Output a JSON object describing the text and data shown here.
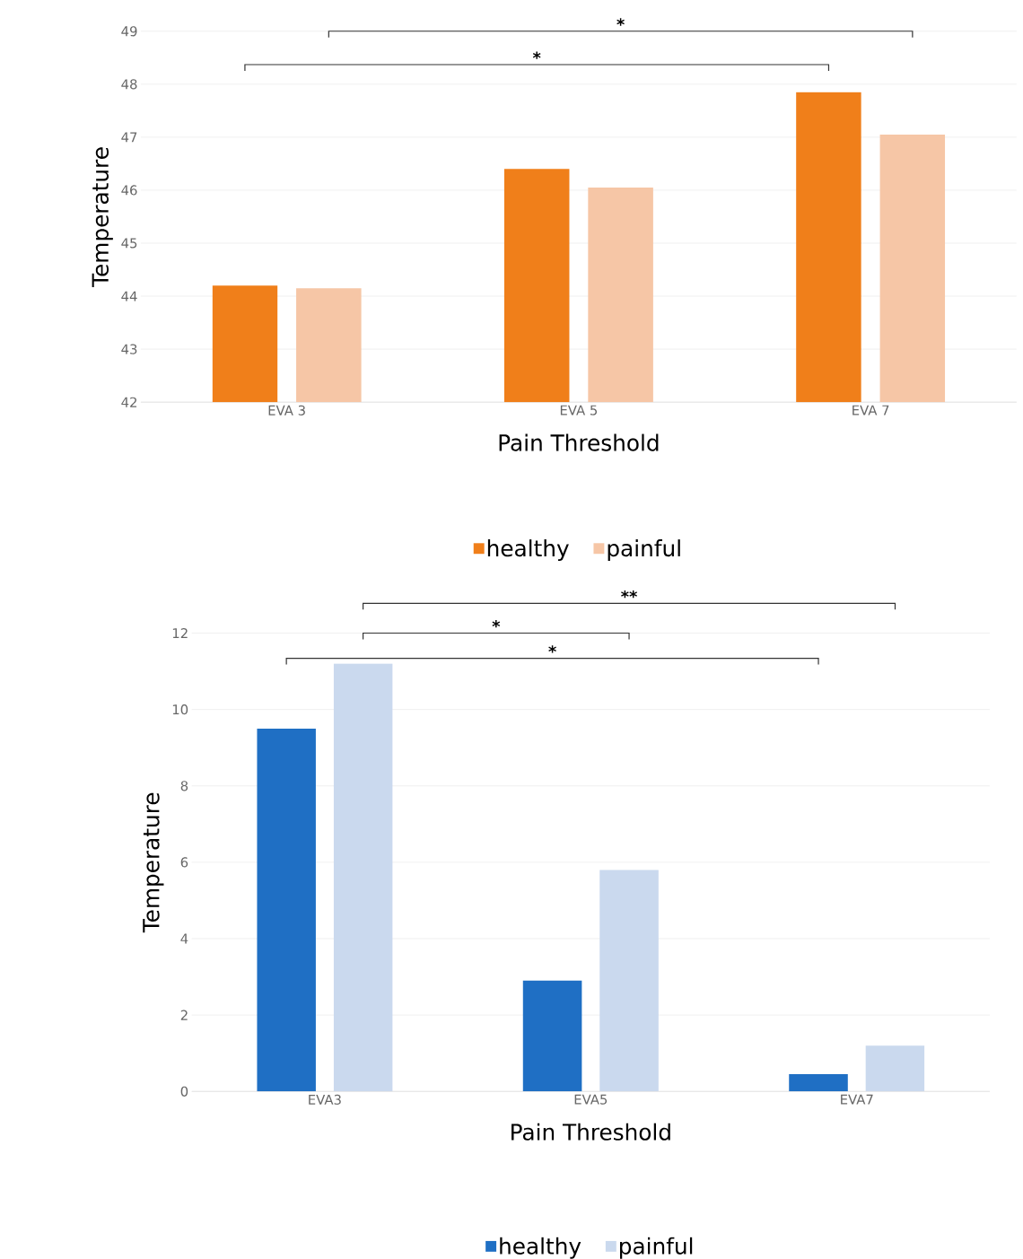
{
  "chart_data": [
    {
      "type": "bar",
      "xlabel": "Pain Threshold",
      "ylabel": "Temperature",
      "categories": [
        "EVA 3",
        "EVA 5",
        "EVA 7"
      ],
      "series": [
        {
          "name": "healthy",
          "color": "#f07f1a",
          "values": [
            44.2,
            46.4,
            47.85
          ]
        },
        {
          "name": "painful",
          "color": "#f6c6a6",
          "values": [
            44.15,
            46.05,
            47.05
          ]
        }
      ],
      "ylim": [
        42,
        49
      ],
      "yticks": [
        42,
        43,
        44,
        45,
        46,
        47,
        48,
        49
      ],
      "grid": "y",
      "legend": "bottom",
      "annotations": [
        "*",
        "*"
      ]
    },
    {
      "type": "bar",
      "xlabel": "Pain Threshold",
      "ylabel": "Temperature",
      "categories": [
        "EVA3",
        "EVA5",
        "EVA7"
      ],
      "series": [
        {
          "name": "healthy",
          "color": "#1f6fc4",
          "values": [
            9.5,
            2.9,
            0.45
          ]
        },
        {
          "name": "painful",
          "color": "#cad9ee",
          "values": [
            11.2,
            5.8,
            1.2
          ]
        }
      ],
      "ylim": [
        0,
        12
      ],
      "yticks": [
        0,
        2,
        4,
        6,
        8,
        10,
        12
      ],
      "grid": "y",
      "legend": "bottom",
      "annotations": [
        "**",
        "*",
        "*"
      ]
    }
  ]
}
